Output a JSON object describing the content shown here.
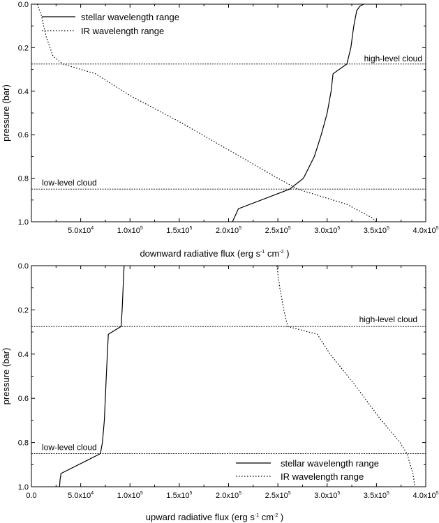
{
  "chart_data": [
    {
      "type": "line",
      "xlabel": "downward radiative flux (erg s⁻¹ cm⁻²)",
      "xlabel_parts": [
        "downward radiative flux (erg s",
        "-1",
        " cm",
        "-2",
        " )"
      ],
      "ylabel": "pressure (bar)",
      "xlim": [
        0,
        400000
      ],
      "ylim": [
        0,
        1.0
      ],
      "y_inverted": true,
      "x_ticks": [
        {
          "value": 50000,
          "mantissa": "5.0x10",
          "exp": "4"
        },
        {
          "value": 100000,
          "mantissa": "1.0x10",
          "exp": "5"
        },
        {
          "value": 150000,
          "mantissa": "1.5x10",
          "exp": "5"
        },
        {
          "value": 200000,
          "mantissa": "2.0x10",
          "exp": "5"
        },
        {
          "value": 250000,
          "mantissa": "2.5x10",
          "exp": "5"
        },
        {
          "value": 300000,
          "mantissa": "3.0x10",
          "exp": "5"
        },
        {
          "value": 350000,
          "mantissa": "3.5x10",
          "exp": "5"
        },
        {
          "value": 400000,
          "mantissa": "4.0x10",
          "exp": "5"
        }
      ],
      "y_ticks": [
        "0.0",
        "0.2",
        "0.4",
        "0.6",
        "0.8",
        "1.0"
      ],
      "legend_position": "top-left",
      "legend": [
        "stellar wavelength range",
        "IR wavelength range"
      ],
      "annotations": [
        {
          "text": "high-level cloud",
          "pressure": 0.275
        },
        {
          "text": "low-level cloud",
          "pressure": 0.85
        }
      ],
      "series": [
        {
          "name": "stellar wavelength range",
          "style": "solid",
          "points": [
            [
              337000,
              0.0
            ],
            [
              333000,
              0.01
            ],
            [
              330000,
              0.03
            ],
            [
              327000,
              0.1
            ],
            [
              324000,
              0.2
            ],
            [
              320000,
              0.275
            ],
            [
              306000,
              0.32
            ],
            [
              304000,
              0.4
            ],
            [
              300000,
              0.5
            ],
            [
              294000,
              0.6
            ],
            [
              287000,
              0.7
            ],
            [
              276000,
              0.8
            ],
            [
              262000,
              0.85
            ],
            [
              210000,
              0.94
            ],
            [
              207000,
              0.97
            ],
            [
              204000,
              1.0
            ]
          ]
        },
        {
          "name": "IR wavelength range",
          "style": "dotted",
          "points": [
            [
              6000,
              0.0
            ],
            [
              10000,
              0.05
            ],
            [
              15000,
              0.15
            ],
            [
              22000,
              0.24
            ],
            [
              32000,
              0.275
            ],
            [
              65000,
              0.32
            ],
            [
              100000,
              0.42
            ],
            [
              150000,
              0.54
            ],
            [
              200000,
              0.67
            ],
            [
              250000,
              0.8
            ],
            [
              270000,
              0.85
            ],
            [
              320000,
              0.92
            ],
            [
              345000,
              0.98
            ],
            [
              350000,
              1.0
            ]
          ]
        }
      ]
    },
    {
      "type": "line",
      "xlabel": "upward radiative flux (erg s⁻¹ cm⁻²)",
      "xlabel_parts": [
        "upward radiative flux (erg s",
        "-1",
        " cm",
        "-2",
        " )"
      ],
      "ylabel": "pressure (bar)",
      "xlim": [
        0,
        400000
      ],
      "ylim": [
        0,
        1.0
      ],
      "y_inverted": true,
      "x_ticks": [
        {
          "value": 0,
          "mantissa": "0.0",
          "exp": ""
        },
        {
          "value": 50000,
          "mantissa": "5.0x10",
          "exp": "4"
        },
        {
          "value": 100000,
          "mantissa": "1.0x10",
          "exp": "5"
        },
        {
          "value": 150000,
          "mantissa": "1.5x10",
          "exp": "5"
        },
        {
          "value": 200000,
          "mantissa": "2.0x10",
          "exp": "5"
        },
        {
          "value": 250000,
          "mantissa": "2.5x10",
          "exp": "5"
        },
        {
          "value": 300000,
          "mantissa": "3.0x10",
          "exp": "5"
        },
        {
          "value": 350000,
          "mantissa": "3.5x10",
          "exp": "5"
        },
        {
          "value": 400000,
          "mantissa": "4.0x10",
          "exp": "5"
        }
      ],
      "y_ticks": [
        "0.0",
        "0.2",
        "0.4",
        "0.6",
        "0.8",
        "1.0"
      ],
      "legend_position": "bottom-right",
      "legend": [
        "stellar wavelength range",
        "IR wavelength range"
      ],
      "annotations": [
        {
          "text": "high-level cloud",
          "pressure": 0.275
        },
        {
          "text": "low-level cloud",
          "pressure": 0.85
        }
      ],
      "series": [
        {
          "name": "stellar wavelength range",
          "style": "solid",
          "points": [
            [
              94000,
              0.0
            ],
            [
              93000,
              0.1
            ],
            [
              92000,
              0.2
            ],
            [
              91000,
              0.275
            ],
            [
              78000,
              0.31
            ],
            [
              76000,
              0.5
            ],
            [
              74000,
              0.7
            ],
            [
              72000,
              0.8
            ],
            [
              70000,
              0.85
            ],
            [
              30000,
              0.94
            ],
            [
              29000,
              0.97
            ],
            [
              28500,
              1.0
            ]
          ]
        },
        {
          "name": "IR wavelength range",
          "style": "dotted",
          "points": [
            [
              249000,
              0.0
            ],
            [
              252000,
              0.1
            ],
            [
              256000,
              0.2
            ],
            [
              260000,
              0.275
            ],
            [
              290000,
              0.31
            ],
            [
              303000,
              0.4
            ],
            [
              330000,
              0.55
            ],
            [
              355000,
              0.7
            ],
            [
              374000,
              0.8
            ],
            [
              381000,
              0.85
            ],
            [
              387000,
              0.94
            ],
            [
              389000,
              1.0
            ]
          ]
        }
      ]
    }
  ]
}
